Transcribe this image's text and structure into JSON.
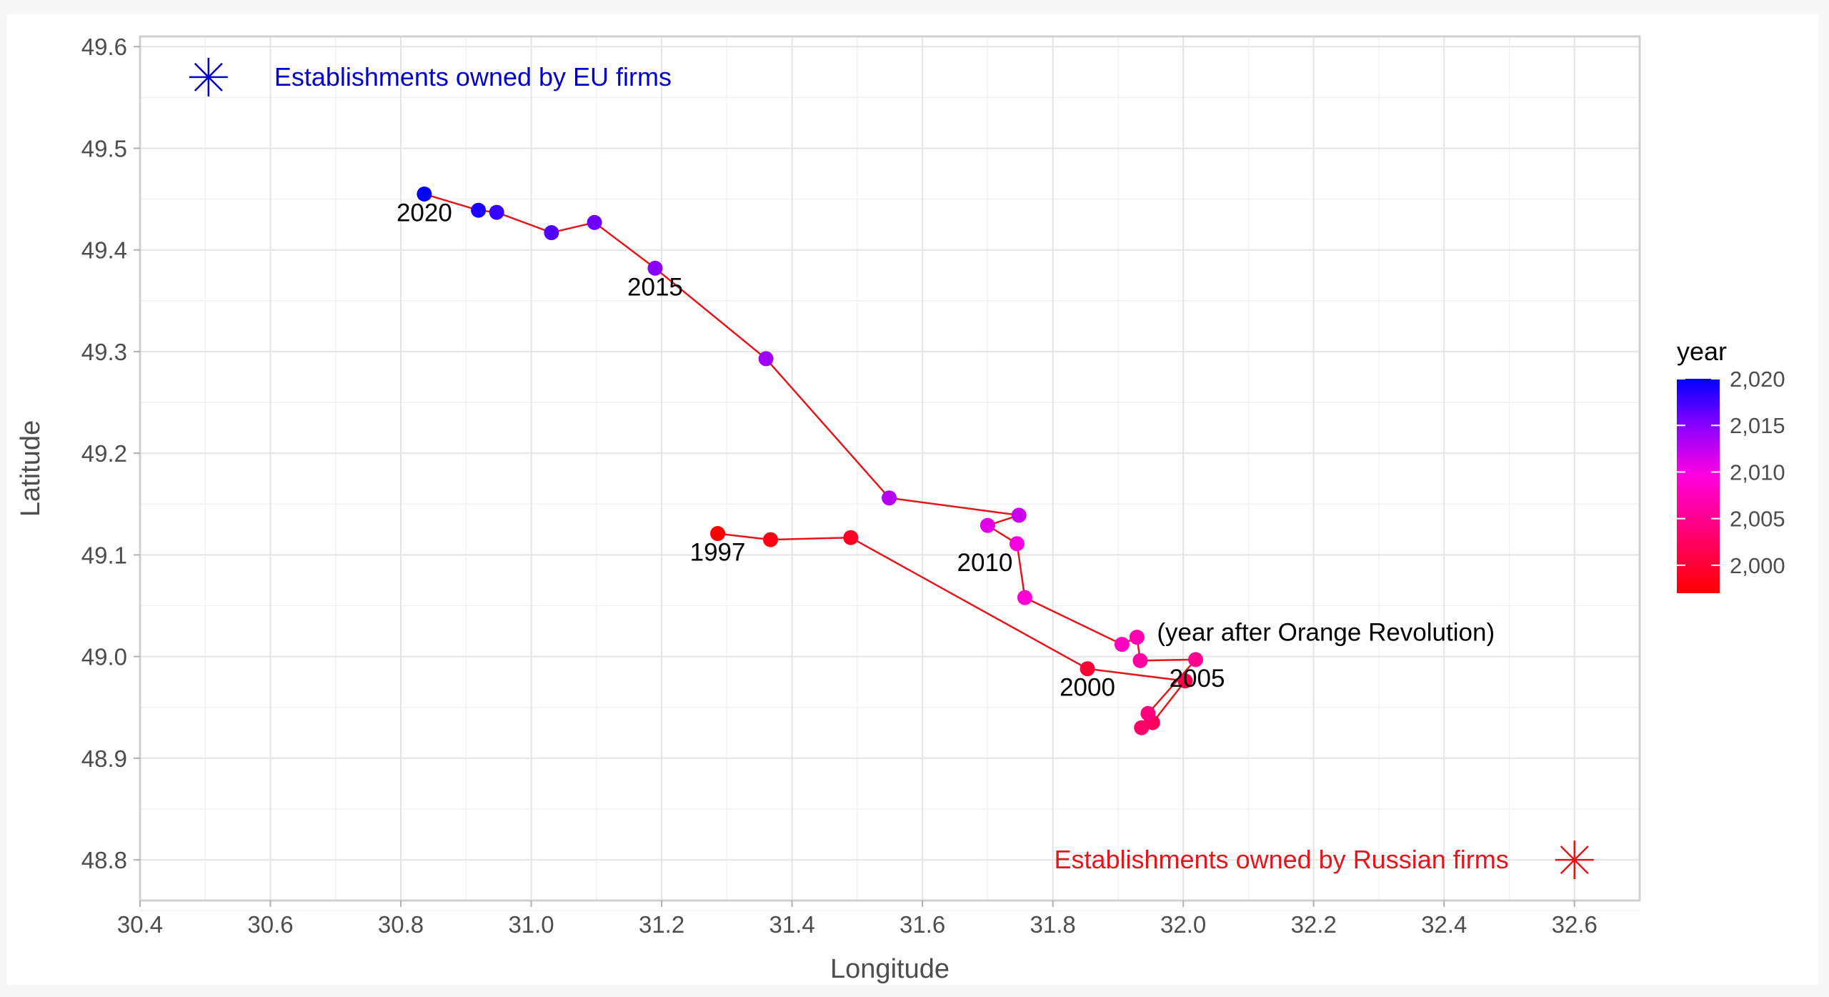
{
  "chart_data": {
    "type": "scatter",
    "xlabel": "Longitude",
    "ylabel": "Latitude",
    "xlim": [
      30.4,
      32.7
    ],
    "ylim": [
      48.76,
      49.61
    ],
    "xticks": [
      "30.4",
      "30.6",
      "30.8",
      "31.0",
      "31.2",
      "31.4",
      "31.6",
      "31.8",
      "32.0",
      "32.2",
      "32.4",
      "32.6"
    ],
    "yticks": [
      "48.8",
      "48.9",
      "49.0",
      "49.1",
      "49.2",
      "49.3",
      "49.4",
      "49.5",
      "49.6"
    ],
    "grid": true,
    "series": [
      {
        "connected": true,
        "line_color": "#e4161c",
        "points": [
          {
            "year": 1997,
            "x": 31.286,
            "y": 49.121
          },
          {
            "year": 1998,
            "x": 31.367,
            "y": 49.115
          },
          {
            "year": 1999,
            "x": 31.49,
            "y": 49.117
          },
          {
            "year": 2000,
            "x": 31.853,
            "y": 48.988
          },
          {
            "year": 2001,
            "x": 32.003,
            "y": 48.976
          },
          {
            "year": 2002,
            "x": 31.953,
            "y": 48.935
          },
          {
            "year": 2003,
            "x": 31.936,
            "y": 48.93
          },
          {
            "year": 2004,
            "x": 31.946,
            "y": 48.944
          },
          {
            "year": 2005,
            "x": 32.019,
            "y": 48.997
          },
          {
            "year": 2006,
            "x": 31.934,
            "y": 48.996
          },
          {
            "year": 2007,
            "x": 31.929,
            "y": 49.019
          },
          {
            "year": 2008,
            "x": 31.906,
            "y": 49.012
          },
          {
            "year": 2009,
            "x": 31.757,
            "y": 49.058
          },
          {
            "year": 2010,
            "x": 31.745,
            "y": 49.111
          },
          {
            "year": 2011,
            "x": 31.7,
            "y": 49.129
          },
          {
            "year": 2012,
            "x": 31.748,
            "y": 49.139
          },
          {
            "year": 2013,
            "x": 31.549,
            "y": 49.156
          },
          {
            "year": 2014,
            "x": 31.36,
            "y": 49.293
          },
          {
            "year": 2015,
            "x": 31.19,
            "y": 49.382
          },
          {
            "year": 2016,
            "x": 31.097,
            "y": 49.427
          },
          {
            "year": 2017,
            "x": 31.031,
            "y": 49.417
          },
          {
            "year": 2018,
            "x": 30.947,
            "y": 49.437
          },
          {
            "year": 2019,
            "x": 30.919,
            "y": 49.439
          },
          {
            "year": 2020,
            "x": 30.836,
            "y": 49.455
          }
        ]
      }
    ],
    "point_labels": [
      {
        "text": "1997",
        "x": 31.286,
        "y": 49.121
      },
      {
        "text": "2000",
        "x": 31.853,
        "y": 48.988
      },
      {
        "text": "2005",
        "x": 32.019,
        "y": 48.997
      },
      {
        "text": "2010",
        "x": 31.745,
        "y": 49.111
      },
      {
        "text": "2015",
        "x": 31.19,
        "y": 49.382
      },
      {
        "text": "2020",
        "x": 30.836,
        "y": 49.455
      }
    ],
    "annotations": [
      {
        "text": "(year after Orange Revolution)",
        "color": "#000000"
      },
      {
        "text": "Establishments owned by EU firms",
        "color": "#0000cc",
        "marker_x": 30.505,
        "marker_y": 49.57
      },
      {
        "text": "Establishments owned by Russian firms",
        "color": "#e4161c",
        "marker_x": 32.6,
        "marker_y": 48.8
      }
    ],
    "legend": {
      "title": "year",
      "position": "right",
      "labels": [
        "2,020",
        "2,015",
        "2,010",
        "2,005",
        "2,000"
      ],
      "values": [
        2020,
        2015,
        2010,
        2005,
        2000
      ],
      "range": [
        1997,
        2020
      ],
      "colors": {
        "low": "#ff0000",
        "mid": "#ff00d4",
        "high": "#0000ff"
      }
    }
  }
}
